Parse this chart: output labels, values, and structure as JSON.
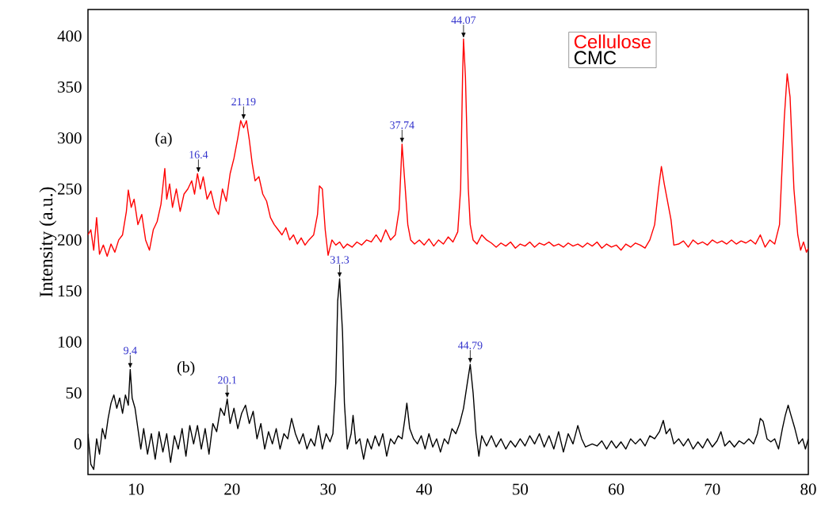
{
  "chart_data": {
    "type": "line",
    "ylabel": "Intensity (a.u.)",
    "xlim": [
      5,
      80
    ],
    "ylim": [
      -30,
      426
    ],
    "xticks": [
      10,
      20,
      30,
      40,
      50,
      60,
      70,
      80
    ],
    "yticks": [
      0,
      50,
      100,
      150,
      200,
      250,
      300,
      350,
      400
    ],
    "grid": false,
    "legend": "top right",
    "marker": "none",
    "line_style": "solid",
    "annotations": [
      "(a)",
      "(b)",
      {
        "text": "16.4",
        "x": 16.5,
        "y": 265
      },
      {
        "text": "21.19",
        "x": 21.2,
        "y": 317
      },
      {
        "text": "37.74",
        "x": 37.7,
        "y": 294
      },
      {
        "text": "44.07",
        "x": 44.1,
        "y": 397
      },
      {
        "text": "9.4",
        "x": 9.4,
        "y": 73
      },
      {
        "text": "20.1",
        "x": 19.5,
        "y": 44
      },
      {
        "text": "31.3",
        "x": 31.2,
        "y": 162
      },
      {
        "text": "44.79",
        "x": 44.8,
        "y": 78
      }
    ],
    "series": [
      {
        "name": "Cellulose",
        "color": "#ff0000",
        "x": [
          5.0,
          5.3,
          5.6,
          5.9,
          6.2,
          6.6,
          7.0,
          7.4,
          7.8,
          8.2,
          8.6,
          9.0,
          9.2,
          9.5,
          9.8,
          10.2,
          10.6,
          11.0,
          11.4,
          11.8,
          12.2,
          12.6,
          13.0,
          13.2,
          13.5,
          13.8,
          14.2,
          14.6,
          15.0,
          15.4,
          15.8,
          16.1,
          16.4,
          16.7,
          17.0,
          17.4,
          17.8,
          18.2,
          18.6,
          19.0,
          19.4,
          19.8,
          20.2,
          20.6,
          20.9,
          21.2,
          21.5,
          21.8,
          22.1,
          22.4,
          22.8,
          23.2,
          23.6,
          24.0,
          24.4,
          24.8,
          25.2,
          25.6,
          26.0,
          26.4,
          26.8,
          27.2,
          27.6,
          28.0,
          28.5,
          28.9,
          29.1,
          29.4,
          29.7,
          30.0,
          30.4,
          30.8,
          31.2,
          31.6,
          32.0,
          32.5,
          33.0,
          33.5,
          34.0,
          34.5,
          35.0,
          35.5,
          36.0,
          36.5,
          37.0,
          37.4,
          37.7,
          38.0,
          38.3,
          38.6,
          39.0,
          39.5,
          40.0,
          40.5,
          41.0,
          41.5,
          42.0,
          42.5,
          43.0,
          43.5,
          43.8,
          44.0,
          44.1,
          44.3,
          44.6,
          44.8,
          45.1,
          45.5,
          46.0,
          46.5,
          47.0,
          47.5,
          48.0,
          48.5,
          49.0,
          49.5,
          50.0,
          50.5,
          51.0,
          51.5,
          52.0,
          52.5,
          53.0,
          53.5,
          54.0,
          54.5,
          55.0,
          55.5,
          56.0,
          56.5,
          57.0,
          57.5,
          58.0,
          58.5,
          59.0,
          59.5,
          60.0,
          60.5,
          61.0,
          61.5,
          62.0,
          62.5,
          63.0,
          63.5,
          64.0,
          64.4,
          64.7,
          65.0,
          65.3,
          65.7,
          66.0,
          66.5,
          67.0,
          67.5,
          68.0,
          68.5,
          69.0,
          69.5,
          70.0,
          70.5,
          71.0,
          71.5,
          72.0,
          72.5,
          73.0,
          73.5,
          74.0,
          74.5,
          75.0,
          75.5,
          76.0,
          76.5,
          77.0,
          77.5,
          77.8,
          78.1,
          78.5,
          78.9,
          79.2,
          79.5,
          79.8,
          80.0
        ],
        "values": [
          205,
          210,
          190,
          222,
          186,
          195,
          184,
          196,
          188,
          200,
          205,
          228,
          249,
          232,
          240,
          215,
          225,
          200,
          190,
          210,
          218,
          235,
          270,
          240,
          255,
          232,
          250,
          228,
          245,
          250,
          258,
          245,
          265,
          250,
          262,
          240,
          248,
          232,
          225,
          250,
          238,
          265,
          280,
          300,
          317,
          310,
          317,
          298,
          275,
          258,
          262,
          245,
          238,
          222,
          215,
          210,
          205,
          212,
          200,
          205,
          196,
          202,
          195,
          200,
          205,
          225,
          253,
          250,
          210,
          185,
          200,
          195,
          198,
          192,
          196,
          193,
          198,
          195,
          200,
          198,
          205,
          198,
          210,
          200,
          205,
          230,
          294,
          255,
          215,
          200,
          196,
          200,
          195,
          201,
          194,
          200,
          196,
          203,
          198,
          208,
          250,
          360,
          397,
          360,
          250,
          215,
          200,
          196,
          205,
          200,
          197,
          193,
          197,
          194,
          198,
          192,
          196,
          194,
          198,
          193,
          197,
          195,
          198,
          194,
          196,
          193,
          197,
          194,
          196,
          193,
          197,
          194,
          198,
          192,
          196,
          193,
          195,
          190,
          196,
          193,
          197,
          195,
          192,
          200,
          215,
          250,
          272,
          255,
          240,
          220,
          195,
          196,
          199,
          193,
          200,
          196,
          198,
          195,
          200,
          197,
          199,
          196,
          200,
          196,
          199,
          197,
          200,
          196,
          205,
          193,
          200,
          196,
          215,
          320,
          363,
          340,
          250,
          205,
          190,
          198,
          188,
          192
        ]
      },
      {
        "name": "CMC",
        "color": "#000000",
        "x": [
          5.0,
          5.3,
          5.6,
          5.9,
          6.2,
          6.5,
          6.8,
          7.1,
          7.4,
          7.7,
          8.0,
          8.3,
          8.6,
          8.9,
          9.2,
          9.4,
          9.6,
          9.9,
          10.2,
          10.5,
          10.8,
          11.2,
          11.6,
          12.0,
          12.4,
          12.8,
          13.2,
          13.6,
          14.0,
          14.4,
          14.8,
          15.2,
          15.6,
          16.0,
          16.4,
          16.8,
          17.2,
          17.6,
          18.0,
          18.4,
          18.8,
          19.2,
          19.5,
          19.8,
          20.2,
          20.6,
          21.0,
          21.4,
          21.8,
          22.2,
          22.6,
          23.0,
          23.4,
          23.8,
          24.2,
          24.6,
          25.0,
          25.4,
          25.8,
          26.2,
          26.6,
          27.0,
          27.4,
          27.8,
          28.2,
          28.6,
          29.0,
          29.4,
          29.8,
          30.2,
          30.5,
          30.8,
          31.0,
          31.2,
          31.5,
          31.7,
          32.0,
          32.4,
          32.6,
          32.9,
          33.3,
          33.7,
          34.1,
          34.5,
          34.9,
          35.3,
          35.7,
          36.1,
          36.5,
          36.9,
          37.3,
          37.7,
          38.0,
          38.2,
          38.5,
          38.9,
          39.3,
          39.7,
          40.1,
          40.5,
          40.9,
          41.3,
          41.7,
          42.1,
          42.5,
          42.9,
          43.3,
          43.7,
          44.1,
          44.5,
          44.8,
          45.1,
          45.4,
          45.7,
          46.0,
          46.5,
          47.0,
          47.5,
          48.0,
          48.5,
          49.0,
          49.5,
          50.0,
          50.5,
          51.0,
          51.5,
          52.0,
          52.5,
          53.0,
          53.5,
          54.0,
          54.5,
          55.0,
          55.5,
          56.0,
          56.4,
          56.8,
          57.5,
          58.0,
          58.5,
          59.0,
          59.5,
          60.0,
          60.5,
          61.0,
          61.5,
          62.0,
          62.5,
          63.0,
          63.5,
          64.0,
          64.5,
          64.9,
          65.2,
          65.6,
          66.0,
          66.5,
          67.0,
          67.5,
          68.0,
          68.5,
          69.0,
          69.5,
          70.0,
          70.5,
          70.9,
          71.3,
          71.8,
          72.3,
          72.8,
          73.3,
          73.8,
          74.3,
          74.7,
          75.0,
          75.3,
          75.7,
          76.1,
          76.5,
          76.9,
          77.3,
          77.6,
          77.9,
          78.2,
          78.6,
          79.0,
          79.4,
          79.7,
          80.0
        ],
        "values": [
          10,
          -20,
          -25,
          5,
          -10,
          15,
          5,
          25,
          40,
          48,
          35,
          45,
          30,
          48,
          38,
          73,
          45,
          35,
          15,
          -5,
          15,
          -10,
          10,
          -15,
          12,
          -8,
          10,
          -18,
          8,
          -5,
          15,
          -12,
          18,
          0,
          18,
          -5,
          15,
          -10,
          20,
          12,
          35,
          28,
          44,
          20,
          35,
          15,
          30,
          38,
          20,
          32,
          5,
          20,
          -5,
          12,
          0,
          15,
          -5,
          10,
          5,
          25,
          10,
          0,
          10,
          -5,
          5,
          -2,
          18,
          -5,
          10,
          2,
          10,
          60,
          140,
          162,
          110,
          40,
          -5,
          10,
          28,
          0,
          5,
          -15,
          5,
          -5,
          8,
          -2,
          10,
          -12,
          5,
          0,
          8,
          5,
          25,
          40,
          15,
          5,
          0,
          8,
          -5,
          10,
          -3,
          5,
          -8,
          5,
          0,
          15,
          10,
          20,
          35,
          60,
          78,
          50,
          10,
          -12,
          8,
          -2,
          8,
          -3,
          5,
          -5,
          3,
          -3,
          5,
          -2,
          8,
          0,
          10,
          -3,
          8,
          -5,
          12,
          -8,
          10,
          0,
          18,
          5,
          -3,
          0,
          -2,
          3,
          -5,
          3,
          -4,
          2,
          -5,
          5,
          0,
          5,
          -2,
          8,
          5,
          12,
          23,
          10,
          15,
          0,
          5,
          -2,
          5,
          -5,
          2,
          -4,
          5,
          -3,
          3,
          12,
          -2,
          3,
          -3,
          3,
          0,
          5,
          0,
          10,
          25,
          22,
          5,
          2,
          5,
          -5,
          15,
          28,
          38,
          28,
          15,
          0,
          5,
          -5,
          5
        ]
      }
    ]
  }
}
